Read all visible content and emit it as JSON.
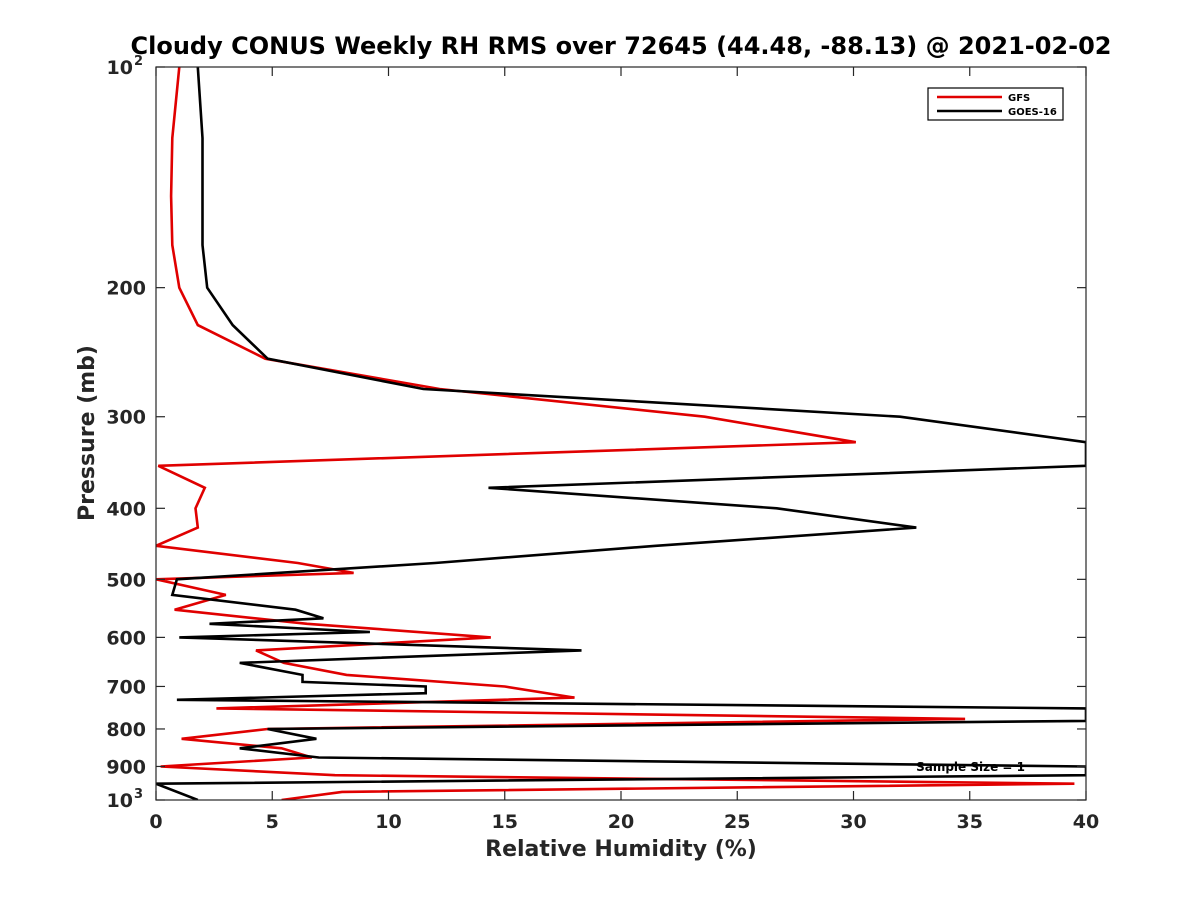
{
  "chart_data": {
    "type": "line",
    "title": "Cloudy CONUS Weekly RH RMS over 72645 (44.48, -88.13) @ 2021-02-02",
    "xlabel": "Relative Humidity (%)",
    "ylabel": "Pressure (mb)",
    "xlim": [
      0,
      40
    ],
    "ylim": [
      100,
      1000
    ],
    "y_scale": "log",
    "y_reversed": true,
    "x_ticks": [
      "0",
      "5",
      "10",
      "15",
      "20",
      "25",
      "30",
      "35",
      "40"
    ],
    "y_ticks": [
      {
        "value": 100,
        "base": "10",
        "exp": "2"
      },
      {
        "value": 200,
        "label": "200"
      },
      {
        "value": 300,
        "label": "300"
      },
      {
        "value": 400,
        "label": "400"
      },
      {
        "value": 500,
        "label": "500"
      },
      {
        "value": 600,
        "label": "600"
      },
      {
        "value": 700,
        "label": "700"
      },
      {
        "value": 800,
        "label": "800"
      },
      {
        "value": 900,
        "label": "900"
      },
      {
        "value": 1000,
        "base": "10",
        "exp": "3"
      }
    ],
    "grid": false,
    "legend_position": "top-right",
    "annotation": "Sample Size = 1",
    "series": [
      {
        "name": "GFS",
        "color": "#e00000",
        "points": [
          [
            1.0,
            100
          ],
          [
            0.7,
            125
          ],
          [
            0.65,
            150
          ],
          [
            0.7,
            175
          ],
          [
            1.0,
            200
          ],
          [
            1.8,
            225
          ],
          [
            4.7,
            250
          ],
          [
            12.2,
            275
          ],
          [
            23.6,
            300
          ],
          [
            30.1,
            325
          ],
          [
            0.1,
            350
          ],
          [
            2.1,
            375
          ],
          [
            1.7,
            400
          ],
          [
            1.8,
            425
          ],
          [
            0.0,
            450
          ],
          [
            6.1,
            475
          ],
          [
            8.5,
            490
          ],
          [
            0.0,
            500
          ],
          [
            3.0,
            525
          ],
          [
            0.8,
            550
          ],
          [
            6.5,
            575
          ],
          [
            14.4,
            600
          ],
          [
            4.3,
            625
          ],
          [
            5.5,
            650
          ],
          [
            8.2,
            675
          ],
          [
            15.0,
            700
          ],
          [
            18.0,
            725
          ],
          [
            2.6,
            750
          ],
          [
            34.8,
            775
          ],
          [
            4.8,
            800
          ],
          [
            1.1,
            825
          ],
          [
            5.4,
            850
          ],
          [
            6.7,
            875
          ],
          [
            0.2,
            900
          ],
          [
            7.7,
            925
          ],
          [
            39.5,
            950
          ],
          [
            8.0,
            975
          ],
          [
            5.4,
            1000
          ]
        ]
      },
      {
        "name": "GOES-16",
        "color": "#000000",
        "points": [
          [
            1.8,
            100
          ],
          [
            2.0,
            125
          ],
          [
            2.0,
            150
          ],
          [
            2.0,
            175
          ],
          [
            2.2,
            200
          ],
          [
            3.3,
            225
          ],
          [
            4.8,
            250
          ],
          [
            11.5,
            275
          ],
          [
            32.0,
            300
          ],
          [
            40.0,
            325
          ],
          [
            40.0,
            350
          ],
          [
            14.3,
            375
          ],
          [
            26.7,
            400
          ],
          [
            32.7,
            425
          ],
          [
            21.5,
            450
          ],
          [
            12.0,
            475
          ],
          [
            0.9,
            500
          ],
          [
            0.7,
            525
          ],
          [
            6.0,
            550
          ],
          [
            7.2,
            565
          ],
          [
            2.3,
            575
          ],
          [
            9.2,
            590
          ],
          [
            1.0,
            600
          ],
          [
            18.3,
            625
          ],
          [
            3.6,
            650
          ],
          [
            6.3,
            675
          ],
          [
            6.3,
            690
          ],
          [
            11.6,
            700
          ],
          [
            11.6,
            715
          ],
          [
            0.9,
            730
          ],
          [
            40.0,
            750
          ],
          [
            40.0,
            780
          ],
          [
            4.8,
            800
          ],
          [
            6.9,
            825
          ],
          [
            3.6,
            850
          ],
          [
            7.0,
            875
          ],
          [
            40.0,
            900
          ],
          [
            40.0,
            925
          ],
          [
            0.0,
            950
          ],
          [
            1.8,
            1000
          ]
        ]
      }
    ]
  }
}
